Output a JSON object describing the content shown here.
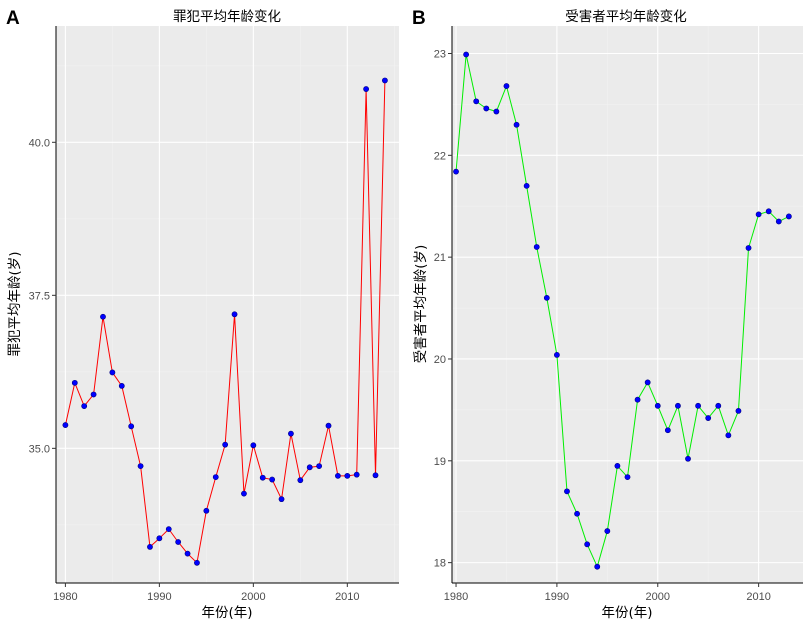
{
  "chart_data": [
    {
      "panel": "A",
      "type": "line",
      "title": "罪犯平均年龄变化",
      "xlabel": "年份(年)",
      "ylabel": "罪犯平均年龄(岁)",
      "xlim": [
        1979,
        2015.5
      ],
      "ylim": [
        32.8,
        41.9
      ],
      "xticks": [
        1980,
        1990,
        2000,
        2010
      ],
      "yticks": [
        35.0,
        37.5,
        40.0
      ],
      "ytick_labels": [
        "35.0",
        "37.5",
        "40.0"
      ],
      "line_color": "#ff0000",
      "point_color": "#0000ff",
      "x": [
        1980,
        1981,
        1982,
        1983,
        1984,
        1985,
        1986,
        1987,
        1988,
        1989,
        1990,
        1991,
        1992,
        1993,
        1994,
        1995,
        1996,
        1997,
        1998,
        1999,
        2000,
        2001,
        2002,
        2003,
        2004,
        2005,
        2006,
        2007,
        2008,
        2009,
        2010,
        2011,
        2012,
        2013,
        2014
      ],
      "y": [
        35.38,
        36.07,
        35.69,
        35.88,
        37.15,
        36.24,
        36.02,
        35.36,
        34.71,
        33.39,
        33.53,
        33.68,
        33.47,
        33.28,
        33.13,
        33.98,
        34.53,
        35.06,
        37.19,
        34.26,
        35.05,
        34.52,
        34.49,
        34.17,
        35.24,
        34.48,
        34.69,
        34.71,
        35.37,
        34.55,
        34.55,
        34.57,
        40.87,
        34.56,
        41.01
      ]
    },
    {
      "panel": "B",
      "type": "line",
      "title": "受害者平均年龄变化",
      "xlabel": "年份(年)",
      "ylabel": "受害者平均年龄(岁)",
      "xlim": [
        1979.6,
        2014.4
      ],
      "ylim": [
        17.8,
        23.27
      ],
      "xticks": [
        1980,
        1990,
        2000,
        2010
      ],
      "yticks": [
        18,
        19,
        20,
        21,
        22,
        23
      ],
      "ytick_labels": [
        "18",
        "19",
        "20",
        "21",
        "22",
        "23"
      ],
      "line_color": "#00ee00",
      "point_color": "#0000ff",
      "x": [
        1980,
        1981,
        1982,
        1983,
        1984,
        1985,
        1986,
        1987,
        1988,
        1989,
        1990,
        1991,
        1992,
        1993,
        1994,
        1995,
        1996,
        1997,
        1998,
        1999,
        2000,
        2001,
        2002,
        2003,
        2004,
        2005,
        2006,
        2007,
        2008,
        2009,
        2010,
        2011,
        2012,
        2013
      ],
      "y": [
        21.84,
        22.99,
        22.53,
        22.46,
        22.43,
        22.68,
        22.3,
        21.7,
        21.1,
        20.6,
        20.04,
        18.7,
        18.48,
        18.18,
        17.96,
        18.31,
        18.95,
        18.84,
        19.6,
        19.77,
        19.54,
        19.3,
        19.54,
        19.02,
        19.54,
        19.42,
        19.54,
        19.25,
        19.49,
        21.09,
        21.42,
        21.45,
        21.35,
        21.4
      ]
    }
  ]
}
